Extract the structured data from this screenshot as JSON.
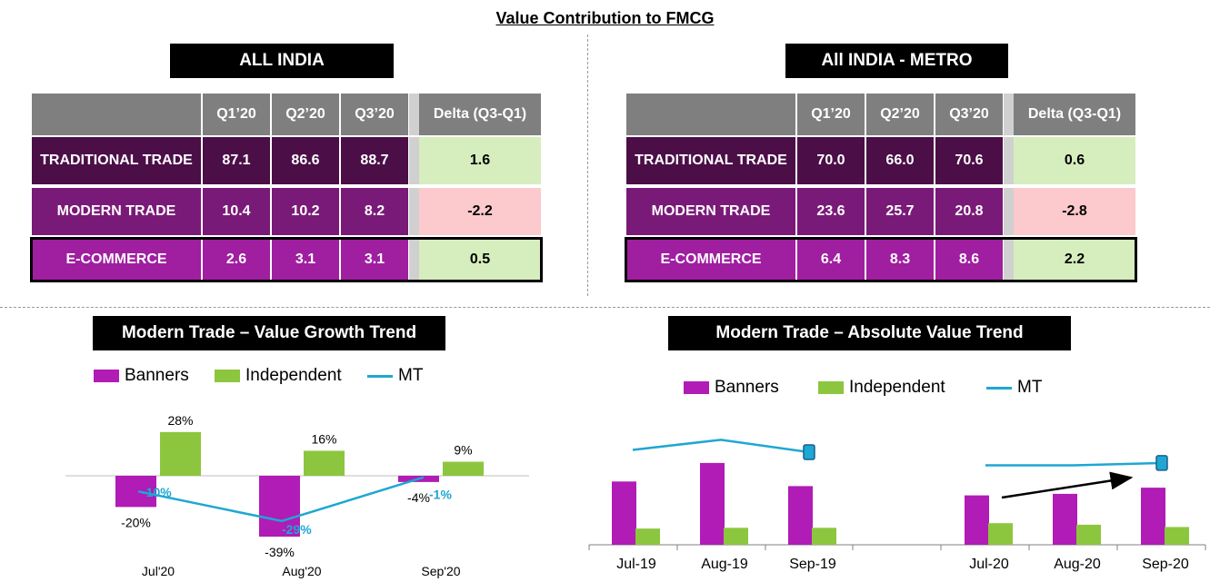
{
  "title": "Value Contribution to FMCG",
  "colors": {
    "banners": "#b01cb5",
    "independent": "#8cc63e",
    "mt_line": "#1ea7d3",
    "header": "#7f7f7f",
    "traditional": "#4b0e47",
    "modern": "#7a1a78",
    "ecommerce": "#a01ea0",
    "delta_pos": "#d6edbe",
    "delta_neg": "#fcc9cc"
  },
  "tables": [
    {
      "title": "ALL INDIA",
      "columns": [
        "Q1’20",
        "Q2’20",
        "Q3’20"
      ],
      "delta_header": "Delta (Q3-Q1)",
      "rows": [
        {
          "label": "TRADITIONAL TRADE",
          "values": [
            "87.1",
            "86.6",
            "88.7"
          ],
          "delta": "1.6"
        },
        {
          "label": "MODERN TRADE",
          "values": [
            "10.4",
            "10.2",
            "8.2"
          ],
          "delta": "-2.2"
        },
        {
          "label": "E-COMMERCE",
          "values": [
            "2.6",
            "3.1",
            "3.1"
          ],
          "delta": "0.5"
        }
      ]
    },
    {
      "title": "All INDIA - METRO",
      "columns": [
        "Q1’20",
        "Q2’20",
        "Q3’20"
      ],
      "delta_header": "Delta (Q3-Q1)",
      "rows": [
        {
          "label": "TRADITIONAL TRADE",
          "values": [
            "70.0",
            "66.0",
            "70.6"
          ],
          "delta": "0.6"
        },
        {
          "label": "MODERN TRADE",
          "values": [
            "23.6",
            "25.7",
            "20.8"
          ],
          "delta": "-2.8"
        },
        {
          "label": "E-COMMERCE",
          "values": [
            "6.4",
            "8.3",
            "8.6"
          ],
          "delta": "2.2"
        }
      ]
    }
  ],
  "chart_data": [
    {
      "type": "bar",
      "title": "Modern Trade – Value Growth Trend",
      "categories": [
        "Jul'20",
        "Aug'20",
        "Sep'20"
      ],
      "series": [
        {
          "name": "Banners",
          "kind": "bar",
          "values": [
            -20,
            -39,
            -4
          ],
          "labels": [
            "-20%",
            "-39%",
            "-4%"
          ]
        },
        {
          "name": "Independent",
          "kind": "bar",
          "values": [
            28,
            16,
            9
          ],
          "labels": [
            "28%",
            "16%",
            "9%"
          ]
        },
        {
          "name": "MT",
          "kind": "line",
          "values": [
            -10,
            -29,
            -1
          ],
          "labels": [
            "-10%",
            "-29%",
            "-1%"
          ]
        }
      ],
      "ylim": [
        -45,
        35
      ]
    },
    {
      "type": "bar",
      "title": "Modern Trade – Absolute Value Trend",
      "categories": [
        "Jul-19",
        "Aug-19",
        "Sep-19",
        "",
        "Jul-20",
        "Aug-20",
        "Sep-20"
      ],
      "series": [
        {
          "name": "Banners",
          "kind": "bar",
          "values": [
            8.2,
            10.6,
            7.6,
            null,
            6.4,
            6.6,
            7.4
          ]
        },
        {
          "name": "Independent",
          "kind": "bar",
          "values": [
            2.1,
            2.2,
            2.2,
            null,
            2.8,
            2.6,
            2.3
          ]
        },
        {
          "name": "MT",
          "kind": "line",
          "values": [
            12.3,
            13.6,
            12.0,
            null,
            10.3,
            10.3,
            10.6
          ]
        }
      ],
      "ylim": [
        0,
        16
      ]
    }
  ]
}
